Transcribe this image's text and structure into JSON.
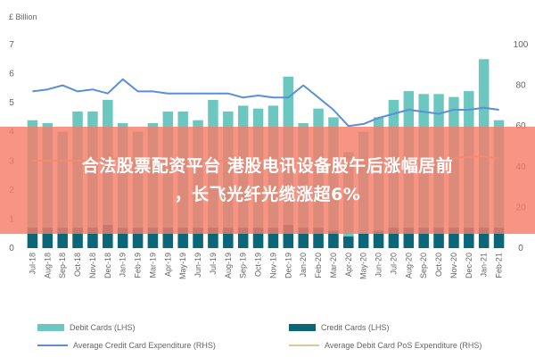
{
  "chart_data": {
    "type": "bar",
    "unit_label": "£ Billion",
    "categories": [
      "Jul-18",
      "Aug-18",
      "Sep-18",
      "Oct-18",
      "Nov-18",
      "Dec-18",
      "Jan-19",
      "Feb-19",
      "Mar-19",
      "Apr-19",
      "May-19",
      "Jun-19",
      "Jul-19",
      "Aug-19",
      "Sep-19",
      "Oct-19",
      "Nov-19",
      "Dec-19",
      "Jan-20",
      "Feb-20",
      "Mar-20",
      "Apr-20",
      "May-20",
      "Jun-20",
      "Jul-20",
      "Aug-20",
      "Sep-20",
      "Oct-20",
      "Nov-20",
      "Dec-20",
      "Jan-21",
      "Feb-21"
    ],
    "ylim_left": [
      0,
      7
    ],
    "yticks_left": [
      0,
      1,
      2,
      3,
      4,
      5,
      6,
      7
    ],
    "ylim_right": [
      0,
      100
    ],
    "yticks_right": [
      0,
      20,
      40,
      60,
      80,
      100
    ],
    "series": [
      {
        "name": "Debit Cards (LHS)",
        "type": "bar",
        "axis": "left",
        "color": "#6cc7c1",
        "values": [
          4.4,
          4.3,
          4.0,
          4.7,
          4.7,
          5.1,
          4.3,
          4.0,
          4.3,
          4.7,
          4.7,
          4.4,
          5.1,
          4.7,
          4.9,
          4.8,
          4.9,
          5.9,
          4.3,
          4.8,
          4.5,
          3.3,
          4.0,
          4.5,
          5.1,
          5.4,
          5.3,
          5.3,
          5.2,
          5.4,
          6.5,
          4.4
        ]
      },
      {
        "name": "Credit Cards (LHS)",
        "type": "bar",
        "axis": "left",
        "color": "#0b6678",
        "values": [
          0.7,
          0.7,
          0.7,
          0.7,
          0.7,
          0.8,
          0.7,
          0.7,
          0.7,
          0.7,
          0.7,
          0.7,
          0.7,
          0.7,
          0.7,
          0.7,
          0.7,
          0.8,
          0.7,
          0.7,
          0.6,
          0.4,
          0.5,
          0.6,
          0.7,
          0.7,
          0.7,
          0.7,
          0.7,
          0.7,
          0.7,
          0.7
        ]
      },
      {
        "name": "Average Credit Card Expenditure (RHS)",
        "type": "line",
        "axis": "right",
        "color": "#5b8fd6",
        "values": [
          77,
          78,
          80,
          77,
          78,
          76,
          83,
          77,
          77,
          76,
          76,
          76,
          76,
          76,
          74,
          75,
          74,
          74,
          80,
          74,
          68,
          60,
          61,
          64,
          66,
          68,
          67,
          66,
          68,
          68,
          69,
          68
        ]
      },
      {
        "name": "Average Debit Card PoS Expenditure (RHS)",
        "type": "line",
        "axis": "right",
        "color": "#dcc896",
        "values": [
          43,
          43,
          43,
          43,
          43,
          44,
          44,
          43,
          43,
          43,
          43,
          43,
          43,
          43,
          43,
          43,
          43,
          43,
          43,
          43,
          43,
          43,
          43,
          43,
          43,
          43,
          43,
          43,
          44,
          45,
          45,
          44
        ]
      }
    ],
    "legend_placement": "bottom",
    "grid": false
  },
  "overlay": {
    "line1": "合法股票配资平台 港股电讯设备股午后涨幅居前",
    "line2": "，长飞光纤光缆涨超6%"
  }
}
